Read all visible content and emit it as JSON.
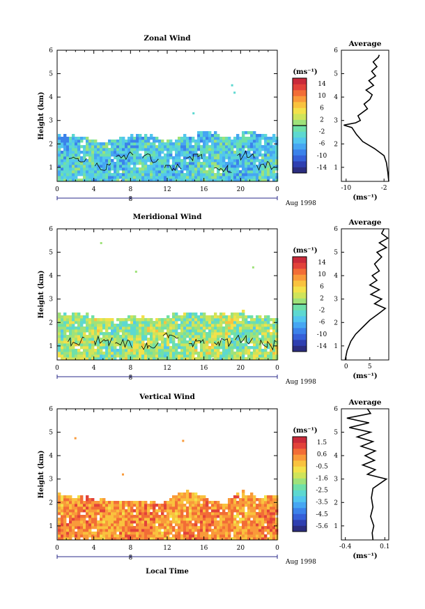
{
  "chart_data": [
    {
      "type": "heatmap",
      "title": "Zonal Wind",
      "xlabel": "",
      "ylabel": "Height (km)",
      "xticks": [
        "0",
        "4",
        "8",
        "12",
        "16",
        "20",
        "0"
      ],
      "xlim": [
        0,
        24
      ],
      "yticks": [
        "1",
        "2",
        "3",
        "4",
        "5",
        "6"
      ],
      "ylim": [
        0.4,
        6
      ],
      "date_marker": "8",
      "date_label": "Aug 1998",
      "colorbar": {
        "unit": "(ms⁻¹)",
        "ticks": [
          "14",
          "10",
          "6",
          "2",
          "-2",
          "-6",
          "-10",
          "-14"
        ],
        "range": [
          -16,
          16
        ],
        "contour_line_at": 0
      },
      "data_top_km": [
        2.4,
        2.4,
        2.4,
        2.3,
        2.2,
        2.1,
        2.2,
        2.3,
        2.4,
        2.4,
        2.4,
        2.3,
        2.2,
        2.3,
        2.4,
        2.5,
        2.6,
        2.5,
        2.4,
        2.3,
        2.5,
        2.6,
        2.5,
        2.4,
        2.4
      ],
      "field_mean_ms": -4,
      "profile": {
        "title": "Average",
        "xlabel": "(ms⁻¹)",
        "xticks": [
          "-10",
          "-2"
        ],
        "xlim": [
          -11,
          -1
        ],
        "y": [
          0.4,
          0.8,
          1.2,
          1.5,
          1.8,
          2.1,
          2.4,
          2.7,
          2.8,
          2.9,
          3.0,
          3.2,
          3.5,
          3.7,
          3.9,
          4.1,
          4.3,
          4.5,
          4.7,
          4.9,
          5.1,
          5.3,
          5.5,
          5.7,
          5.8
        ],
        "x": [
          -1.0,
          -1.2,
          -1.5,
          -2.0,
          -4.0,
          -6.5,
          -7.8,
          -8.8,
          -10.5,
          -8.0,
          -7.0,
          -7.5,
          -5.5,
          -6.2,
          -5.0,
          -4.5,
          -5.8,
          -4.2,
          -5.2,
          -3.8,
          -4.6,
          -3.5,
          -4.3,
          -3.2,
          -3.0
        ]
      }
    },
    {
      "type": "heatmap",
      "title": "Meridional Wind",
      "xlabel": "",
      "ylabel": "Height (km)",
      "xticks": [
        "0",
        "4",
        "8",
        "12",
        "16",
        "20",
        "0"
      ],
      "xlim": [
        0,
        24
      ],
      "yticks": [
        "1",
        "2",
        "3",
        "4",
        "5",
        "6"
      ],
      "ylim": [
        0.4,
        6
      ],
      "date_marker": "8",
      "date_label": "Aug 1998",
      "colorbar": {
        "unit": "(ms⁻¹)",
        "ticks": [
          "14",
          "10",
          "6",
          "2",
          "-2",
          "-6",
          "-10",
          "-14"
        ],
        "range": [
          -16,
          16
        ],
        "contour_line_at": 0
      },
      "data_top_km": [
        2.4,
        2.4,
        2.4,
        2.4,
        2.3,
        2.2,
        2.2,
        2.3,
        2.3,
        2.3,
        2.2,
        2.2,
        2.3,
        2.4,
        2.5,
        2.5,
        2.4,
        2.4,
        2.4,
        2.5,
        2.5,
        2.4,
        2.4,
        2.3,
        2.3
      ],
      "field_mean_ms": 1,
      "profile": {
        "title": "Average",
        "xlabel": "(ms⁻¹)",
        "xticks": [
          "0",
          "5"
        ],
        "xlim": [
          -1,
          9
        ],
        "y": [
          0.4,
          0.8,
          1.2,
          1.5,
          1.8,
          2.1,
          2.4,
          2.6,
          2.8,
          3.0,
          3.2,
          3.4,
          3.6,
          3.8,
          4.0,
          4.2,
          4.5,
          4.8,
          5.0,
          5.2,
          5.4,
          5.6,
          5.8,
          6.0
        ],
        "x": [
          -0.2,
          0.2,
          1.0,
          2.0,
          3.5,
          5.0,
          7.0,
          8.3,
          6.0,
          7.5,
          5.2,
          7.0,
          5.0,
          6.5,
          5.5,
          7.0,
          6.0,
          7.5,
          6.5,
          8.5,
          7.0,
          8.8,
          7.5,
          8.0
        ]
      }
    },
    {
      "type": "heatmap",
      "title": "Vertical Wind",
      "xlabel": "Local Time",
      "ylabel": "Height (km)",
      "xticks": [
        "0",
        "4",
        "8",
        "12",
        "16",
        "20",
        "0"
      ],
      "xlim": [
        0,
        24
      ],
      "yticks": [
        "1",
        "2",
        "3",
        "4",
        "5",
        "6"
      ],
      "ylim": [
        0.4,
        6
      ],
      "date_marker": "8",
      "date_label": "Aug 1998",
      "colorbar": {
        "unit": "(ms⁻¹)",
        "ticks": [
          "1.5",
          "0.6",
          "-0.5",
          "-1.6",
          "-2.5",
          "-3.5",
          "-4.5",
          "-5.6"
        ],
        "range": [
          -6,
          2
        ],
        "contour_line_at": null
      },
      "data_top_km": [
        2.4,
        2.4,
        2.3,
        2.3,
        2.2,
        2.2,
        2.1,
        2.1,
        2.1,
        2.1,
        2.1,
        2.0,
        2.2,
        2.4,
        2.6,
        2.5,
        2.3,
        2.1,
        2.0,
        2.3,
        2.5,
        2.4,
        2.3,
        2.3,
        2.3
      ],
      "field_mean_ms": 0.3,
      "profile": {
        "title": "Average",
        "xlabel": "(ms⁻¹)",
        "xticks": [
          "-0.4",
          "0.1"
        ],
        "xlim": [
          -0.45,
          0.15
        ],
        "y": [
          0.4,
          0.7,
          1.0,
          1.4,
          1.8,
          2.2,
          2.6,
          3.0,
          3.1,
          3.2,
          3.4,
          3.6,
          3.8,
          4.0,
          4.2,
          4.4,
          4.6,
          4.8,
          5.0,
          5.2,
          5.4,
          5.6,
          5.8,
          6.0
        ],
        "x": [
          -0.05,
          -0.06,
          -0.04,
          -0.08,
          -0.05,
          -0.07,
          -0.05,
          0.12,
          0.0,
          -0.12,
          -0.02,
          -0.18,
          -0.03,
          -0.15,
          -0.02,
          -0.2,
          -0.05,
          -0.25,
          -0.08,
          -0.35,
          -0.1,
          -0.38,
          -0.08,
          -0.12
        ]
      }
    }
  ]
}
